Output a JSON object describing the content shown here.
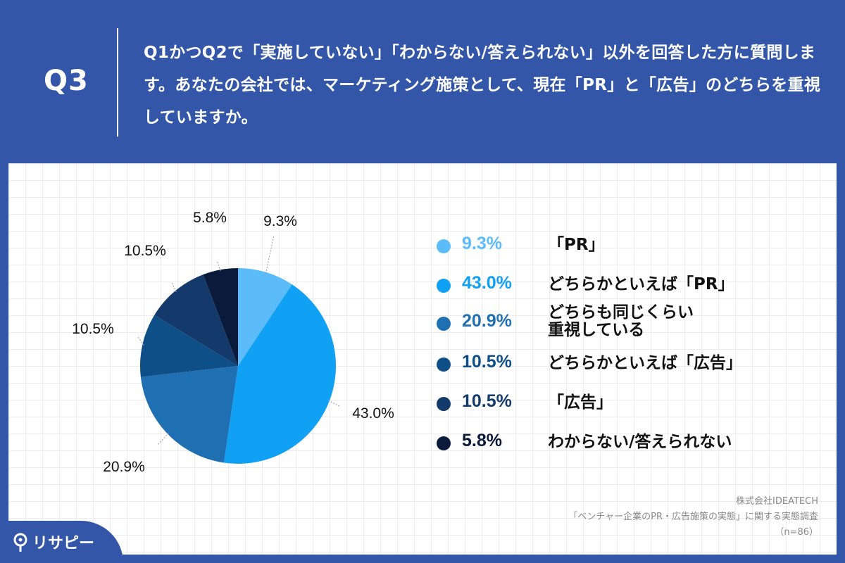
{
  "header": {
    "qlabel": "Q3",
    "question": "Q1かつQ2で「実施していない」「わからない/答えられない」以外を回答した方に質問します。あなたの会社では、マーケティング施策として、現在「PR」と「広告」のどちらを重視していますか。"
  },
  "chart_data": {
    "type": "pie",
    "categories": [
      "「PR」",
      "どちらかといえば「PR」",
      "どちらも同じくらい重視している",
      "どちらかといえば「広告」",
      "「広告」",
      "わからない/答えられない"
    ],
    "values": [
      9.3,
      43.0,
      20.9,
      10.5,
      10.5,
      5.8
    ],
    "labels": [
      "9.3%",
      "43.0%",
      "20.9%",
      "10.5%",
      "10.5%",
      "5.8%"
    ],
    "colors": [
      "#5bbcf9",
      "#10a0f4",
      "#1f6fb3",
      "#0e4f88",
      "#133a6a",
      "#0a1a3a"
    ],
    "start": "12 o'clock",
    "direction": "clockwise"
  },
  "legend": [
    {
      "pct": "9.3%",
      "name": "「PR」",
      "color": "#5bbcf9"
    },
    {
      "pct": "43.0%",
      "name": "どちらかといえば「PR」",
      "color": "#10a0f4"
    },
    {
      "pct": "20.9%",
      "name": "どちらも同じくらい\n重視している",
      "color": "#1f6fb3"
    },
    {
      "pct": "10.5%",
      "name": "どちらかといえば「広告」",
      "color": "#0e4f88"
    },
    {
      "pct": "10.5%",
      "name": "「広告」",
      "color": "#133a6a"
    },
    {
      "pct": "5.8%",
      "name": "わからない/答えられない",
      "color": "#0a1a3a"
    }
  ],
  "source": {
    "company": "株式会社IDEATECH",
    "survey": "「ベンチャー企業のPR・広告施策の実態」に関する実態調査",
    "n": "（n=86）"
  },
  "logo": {
    "text": "リサピー",
    "icon": "location-pin-icon"
  }
}
